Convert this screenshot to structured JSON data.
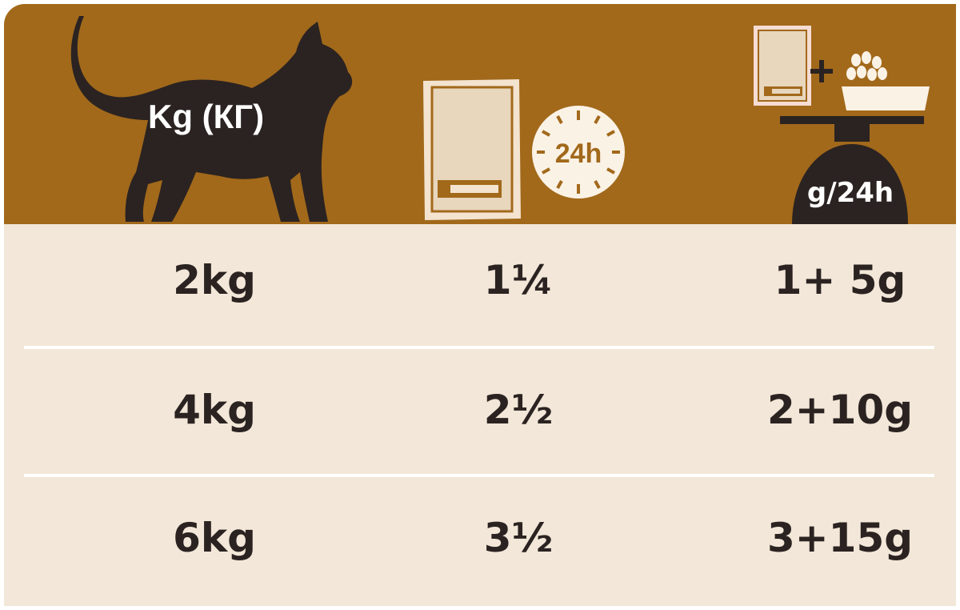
{
  "header": {
    "weight_label": "Kg (КГ)",
    "daily_label": "24h",
    "mixed_label": "g/24h"
  },
  "colors": {
    "header": "#a2691b",
    "body": "#f2e7d8",
    "text": "#2b2321",
    "dark": "#2b2321"
  },
  "icons": [
    "cat-silhouette-icon",
    "pouch-icon",
    "clock-24h-icon",
    "pouch-plus-kibble-bowl-icon",
    "scale-icon"
  ],
  "rows": [
    {
      "weight": "2kg",
      "pouches": "1¼",
      "mixed": "1+ 5g"
    },
    {
      "weight": "4kg",
      "pouches": "2½",
      "mixed": "2+10g"
    },
    {
      "weight": "6kg",
      "pouches": "3½",
      "mixed": "3+15g"
    }
  ]
}
